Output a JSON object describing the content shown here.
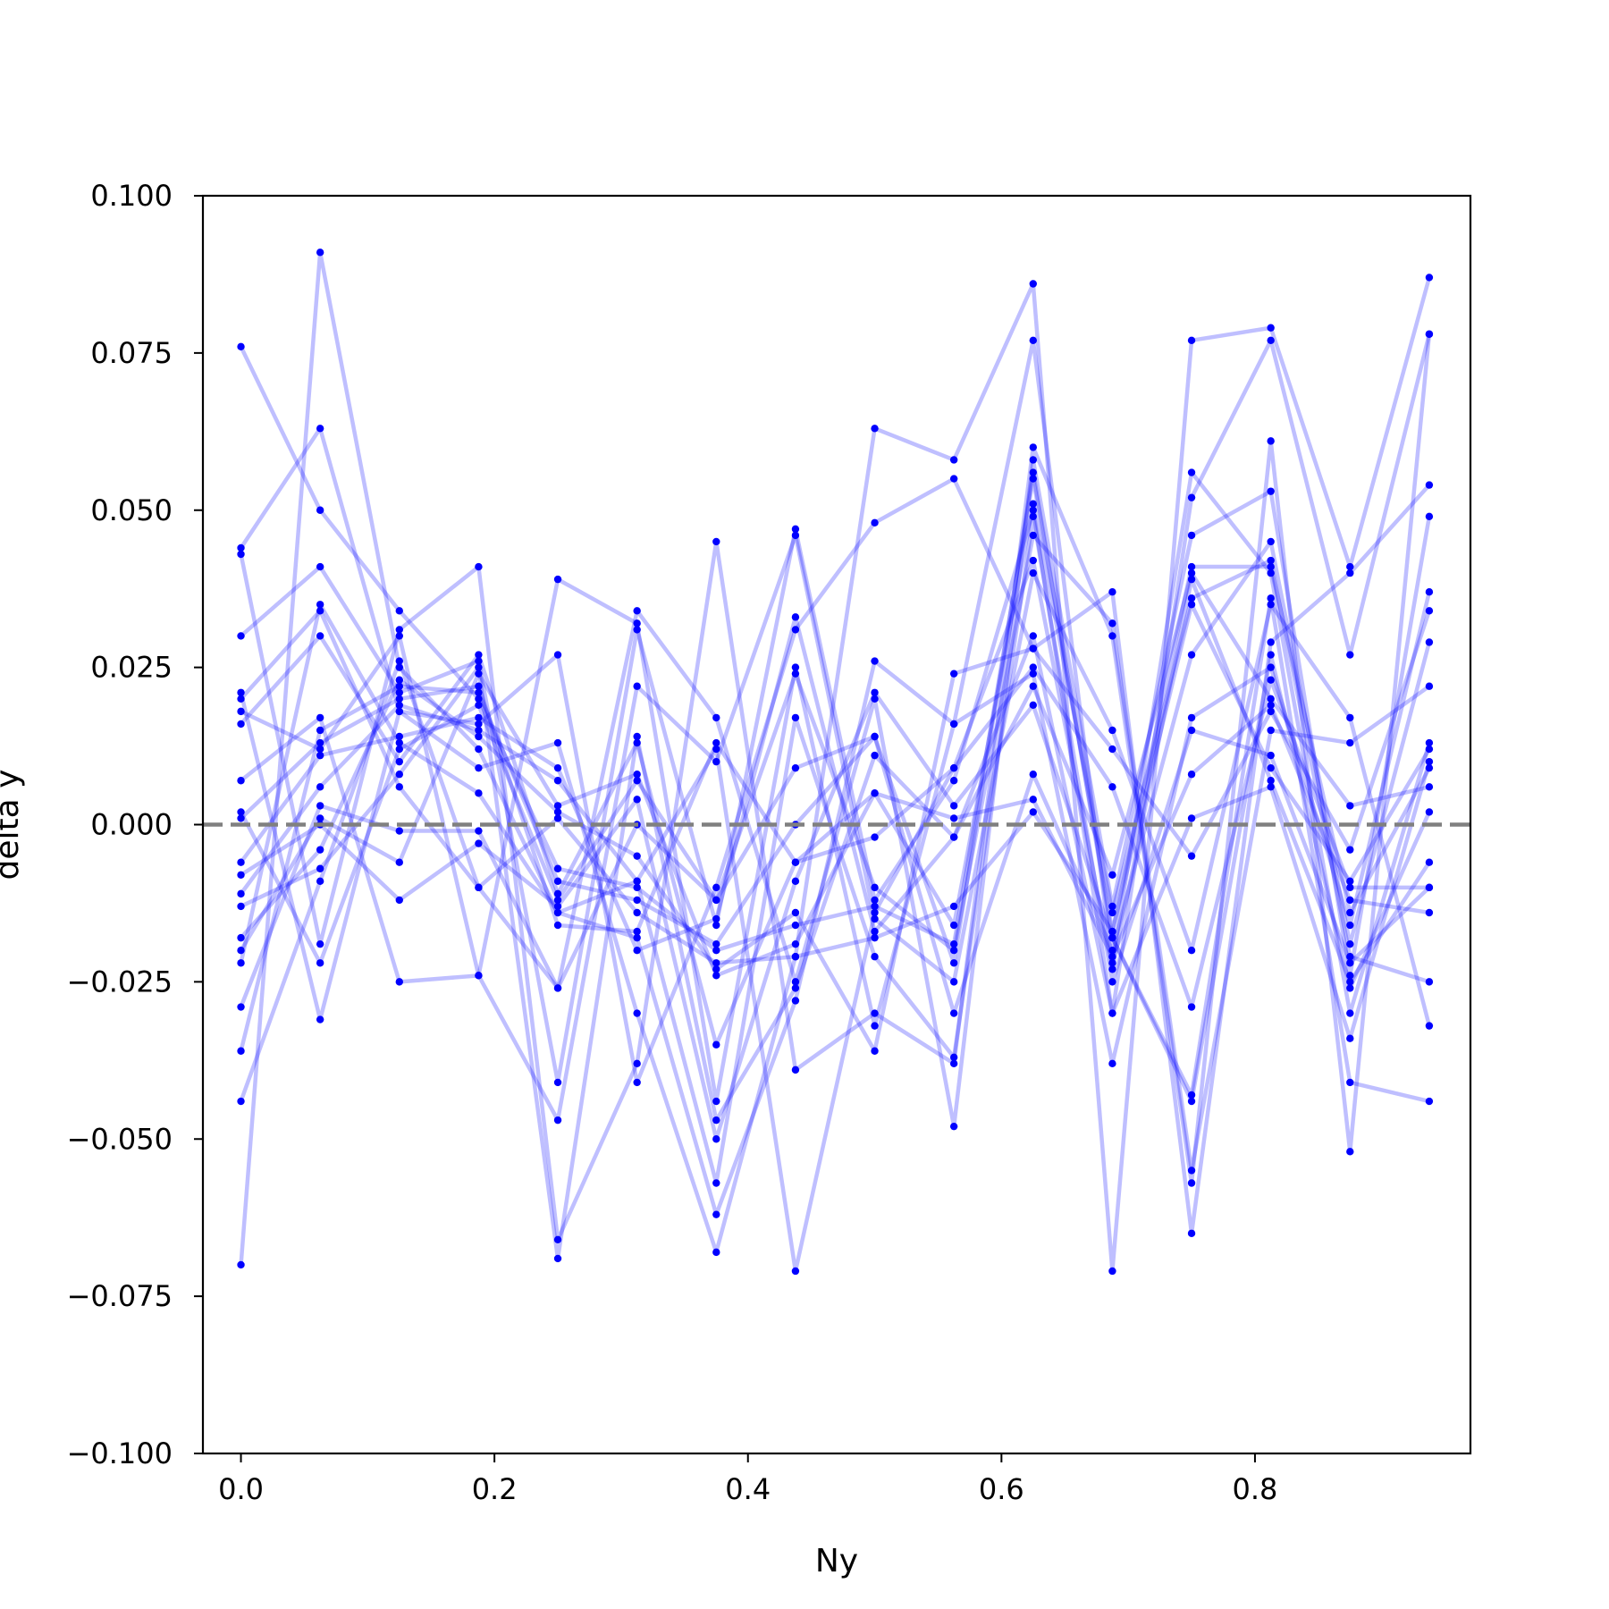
{
  "chart_data": {
    "type": "line",
    "title": "",
    "xlabel": "Ny",
    "ylabel": "delta y",
    "xlim": [
      -0.03,
      0.97
    ],
    "ylim": [
      -0.1,
      0.1
    ],
    "x": [
      0.0,
      0.0625,
      0.125,
      0.1875,
      0.25,
      0.3125,
      0.375,
      0.4375,
      0.5,
      0.5625,
      0.625,
      0.6875,
      0.75,
      0.8125,
      0.875,
      0.9375
    ],
    "xticks": [
      0.0,
      0.2,
      0.4,
      0.6,
      0.8
    ],
    "xtick_labels": [
      "0.0",
      "0.2",
      "0.4",
      "0.6",
      "0.8"
    ],
    "yticks": [
      -0.1,
      -0.075,
      -0.05,
      -0.025,
      0.0,
      0.025,
      0.05,
      0.075,
      0.1
    ],
    "ytick_labels": [
      "−0.100",
      "−0.075",
      "−0.050",
      "−0.025",
      "0.000",
      "0.025",
      "0.050",
      "0.075",
      "0.100"
    ],
    "reference_line": {
      "y": 0.0,
      "style": "dashed",
      "color": "#808080"
    },
    "line_color": "#0000ff",
    "line_opacity": 0.25,
    "marker_color": "#0000ff",
    "grid": false,
    "series": [
      {
        "values": [
          0.076,
          0.05,
          0.034,
          0.02,
          -0.007,
          -0.01,
          -0.02,
          -0.016,
          -0.013,
          -0.019,
          0.055,
          -0.017,
          0.041,
          0.041,
          -0.014,
          0.009
        ]
      },
      {
        "values": [
          -0.07,
          0.091,
          0.025,
          0.012,
          -0.014,
          -0.018,
          -0.062,
          -0.028,
          0.026,
          0.016,
          0.077,
          -0.022,
          0.056,
          0.04,
          -0.03,
          0.013
        ]
      },
      {
        "values": [
          0.044,
          0.063,
          0.018,
          0.009,
          0.013,
          -0.03,
          -0.068,
          -0.021,
          0.063,
          0.058,
          0.086,
          -0.071,
          0.077,
          0.079,
          0.041,
          0.087
        ]
      },
      {
        "values": [
          0.043,
          -0.019,
          0.031,
          0.041,
          -0.066,
          -0.038,
          0.045,
          -0.039,
          -0.03,
          -0.038,
          0.06,
          0.03,
          -0.057,
          0.061,
          -0.052,
          0.078
        ]
      },
      {
        "values": [
          0.03,
          0.041,
          0.021,
          0.026,
          -0.041,
          0.031,
          -0.016,
          0.047,
          -0.012,
          0.007,
          0.05,
          -0.03,
          0.052,
          0.077,
          0.027,
          0.078
        ]
      },
      {
        "values": [
          0.021,
          -0.031,
          0.018,
          0.016,
          0.027,
          -0.041,
          -0.01,
          0.031,
          0.048,
          0.055,
          0.028,
          0.037,
          -0.065,
          0.029,
          0.04,
          0.054
        ]
      },
      {
        "values": [
          0.02,
          0.034,
          0.006,
          -0.01,
          -0.026,
          0.034,
          0.017,
          -0.025,
          0.02,
          -0.048,
          0.058,
          -0.013,
          0.046,
          0.053,
          -0.024,
          0.049
        ]
      },
      {
        "values": [
          0.018,
          0.012,
          0.03,
          -0.024,
          -0.047,
          0.022,
          0.01,
          0.046,
          -0.015,
          -0.025,
          0.04,
          0.015,
          -0.02,
          0.035,
          0.017,
          -0.032
        ]
      },
      {
        "values": [
          0.016,
          0.03,
          0.01,
          0.027,
          -0.011,
          0.013,
          -0.035,
          -0.006,
          0.005,
          -0.016,
          0.051,
          -0.014,
          0.036,
          0.042,
          -0.021,
          -0.025
        ]
      },
      {
        "values": [
          0.007,
          0.017,
          -0.025,
          -0.024,
          0.039,
          0.032,
          -0.044,
          0.025,
          -0.032,
          0.016,
          0.024,
          -0.038,
          0.017,
          0.025,
          -0.016,
          0.037
        ]
      },
      {
        "values": [
          0.002,
          -0.022,
          0.012,
          0.019,
          -0.012,
          0.007,
          -0.012,
          0.009,
          0.014,
          -0.03,
          0.008,
          -0.02,
          0.027,
          0.045,
          -0.019,
          0.029
        ]
      },
      {
        "values": [
          0.001,
          0.013,
          0.02,
          0.022,
          -0.016,
          -0.017,
          0.013,
          -0.006,
          -0.002,
          0.009,
          0.025,
          0.006,
          -0.029,
          0.023,
          -0.01,
          -0.01
        ]
      },
      {
        "values": [
          -0.006,
          0.011,
          0.014,
          0.017,
          0.009,
          -0.02,
          -0.015,
          0.033,
          -0.017,
          -0.002,
          0.022,
          -0.008,
          0.04,
          0.02,
          0.003,
          0.006
        ]
      },
      {
        "values": [
          -0.008,
          0.0,
          -0.012,
          -0.003,
          -0.013,
          0.004,
          -0.05,
          -0.009,
          0.021,
          0.003,
          0.019,
          -0.018,
          -0.043,
          0.036,
          -0.041,
          -0.044
        ]
      },
      {
        "values": [
          -0.011,
          0.006,
          0.019,
          0.015,
          0.007,
          -0.009,
          -0.057,
          0.017,
          -0.021,
          -0.037,
          0.049,
          -0.025,
          0.015,
          0.011,
          -0.022,
          -0.01
        ]
      },
      {
        "values": [
          -0.013,
          -0.007,
          0.008,
          0.025,
          -0.069,
          0.014,
          -0.047,
          -0.026,
          0.011,
          -0.002,
          0.03,
          -0.03,
          0.001,
          0.006,
          -0.034,
          0.01
        ]
      },
      {
        "values": [
          -0.018,
          -0.004,
          0.023,
          0.014,
          0.002,
          -0.005,
          -0.023,
          -0.014,
          -0.036,
          0.024,
          0.028,
          0.012,
          -0.005,
          0.018,
          -0.004,
          0.034
        ]
      },
      {
        "values": [
          -0.02,
          0.001,
          -0.006,
          0.024,
          0.003,
          0.008,
          -0.024,
          -0.019,
          0.005,
          0.001,
          0.004,
          -0.021,
          0.008,
          0.019,
          -0.012,
          -0.014
        ]
      },
      {
        "values": [
          -0.022,
          0.035,
          0.013,
          0.005,
          -0.014,
          -0.009,
          0.012,
          -0.071,
          -0.014,
          0.009,
          0.042,
          -0.023,
          0.039,
          0.007,
          -0.025,
          -0.006
        ]
      },
      {
        "values": [
          -0.029,
          0.003,
          -0.001,
          -0.001,
          -0.026,
          0.0,
          -0.012,
          0.024,
          -0.01,
          -0.02,
          0.046,
          0.032,
          -0.055,
          0.015,
          0.013,
          0.022
        ]
      },
      {
        "values": [
          -0.036,
          0.015,
          0.022,
          0.021,
          -0.009,
          -0.012,
          -0.019,
          0.0,
          0.014,
          -0.022,
          0.056,
          -0.018,
          -0.044,
          0.027,
          -0.026,
          0.002
        ]
      },
      {
        "values": [
          -0.044,
          -0.009,
          0.026,
          -0.01,
          0.001,
          -0.014,
          -0.022,
          -0.021,
          -0.018,
          -0.013,
          0.002,
          -0.017,
          0.035,
          0.009,
          -0.009,
          0.012
        ]
      }
    ]
  }
}
